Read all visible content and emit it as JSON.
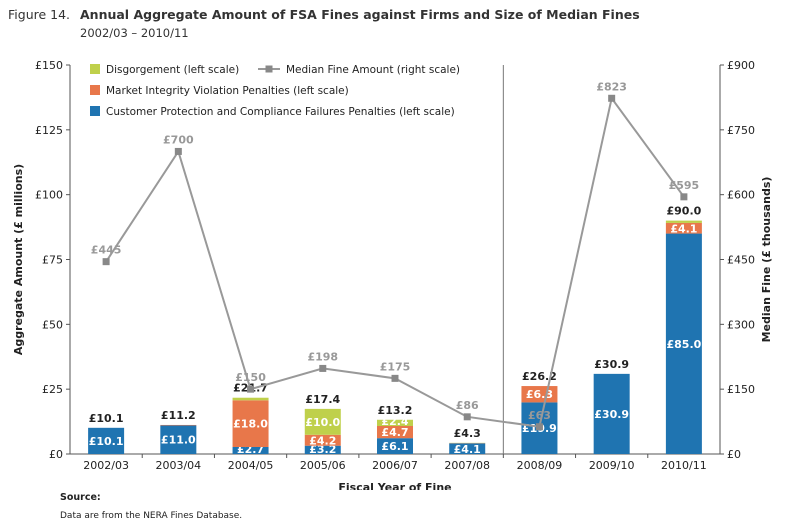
{
  "figure_label": "Figure 14.",
  "title": "Annual Aggregate Amount of FSA Fines against Firms and Size of Median Fines",
  "subtitle": "2002/03 – 2010/11",
  "source_label": "Source:",
  "source_text": "Data are from the NERA Fines Database.",
  "colors": {
    "customer": "#1f74b1",
    "market": "#e8774a",
    "disgorgement": "#bfd04b",
    "median_line": "#999999"
  },
  "chart_data": {
    "type": "bar",
    "stacked": true,
    "xlabel": "Fiscal Year of Fine",
    "ylabel": "Aggregate Amount (£ millions)",
    "y2label": "Median Fine (£ thousands)",
    "ylim": [
      0,
      150
    ],
    "y2lim": [
      0,
      900
    ],
    "yticks": [
      "£0",
      "£25",
      "£50",
      "£75",
      "£100",
      "£125",
      "£150"
    ],
    "y2ticks": [
      "£0",
      "£150",
      "£300",
      "£450",
      "£600",
      "£750",
      "£900"
    ],
    "categories": [
      "2002/03",
      "2003/04",
      "2004/05",
      "2005/06",
      "2006/07",
      "2007/08",
      "2008/09",
      "2009/10",
      "2010/11"
    ],
    "series": [
      {
        "name": "Customer Protection and Compliance Failures Penalties (left scale)",
        "color": "#1f74b1",
        "values": [
          10.1,
          11.0,
          2.7,
          3.2,
          6.1,
          4.1,
          19.9,
          30.9,
          85.0
        ],
        "labels": [
          "£10.1",
          "£11.0",
          "£2.7",
          "£3.2",
          "£6.1",
          "£4.1",
          "£19.9",
          "£30.9",
          "£85.0"
        ]
      },
      {
        "name": "Market Integrity Violation Penalties (left scale)",
        "color": "#e8774a",
        "values": [
          0,
          0.2,
          18.0,
          4.2,
          4.7,
          0.1,
          6.3,
          0,
          4.1
        ],
        "labels": [
          "",
          "",
          "£18.0",
          "£4.2",
          "£4.7",
          "",
          "£6.3",
          "",
          "£4.1"
        ]
      },
      {
        "name": "Disgorgement (left scale)",
        "color": "#bfd04b",
        "values": [
          0,
          0,
          1.0,
          10.0,
          2.4,
          0.1,
          0,
          0,
          0.9
        ],
        "labels": [
          "",
          "",
          "",
          "£10.0",
          "£2.4",
          "",
          "",
          "",
          ""
        ]
      }
    ],
    "totals": [
      10.1,
      11.2,
      21.7,
      17.4,
      13.2,
      4.3,
      26.2,
      30.9,
      90.0
    ],
    "total_labels": [
      "£10.1",
      "£11.2",
      "£21.7",
      "£17.4",
      "£13.2",
      "£4.3",
      "£26.2",
      "£30.9",
      "£90.0"
    ],
    "median_series": {
      "name": "Median Fine Amount (right scale)",
      "color": "#999999",
      "values": [
        445,
        700,
        150,
        198,
        175,
        86,
        63,
        823,
        595
      ],
      "labels": [
        "£445",
        "£700",
        "£150",
        "£198",
        "£175",
        "£86",
        "£63",
        "£823",
        "£595"
      ]
    },
    "legend_order": [
      "Disgorgement (left scale)",
      "Median Fine Amount (right scale)",
      "Market Integrity Violation Penalties (left scale)",
      "Customer Protection and Compliance Failures Penalties (left scale)"
    ],
    "legend_position": "top-left",
    "grid": false,
    "divider_after": "2007/08"
  }
}
